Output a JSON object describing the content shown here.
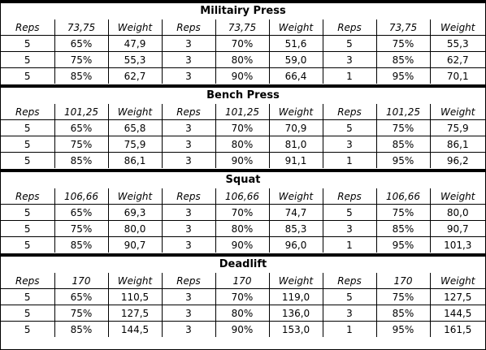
{
  "header_labels": [
    "Reps",
    "Weight"
  ],
  "sections": [
    {
      "title": "Militairy Press",
      "max": "73,75",
      "rows": [
        [
          "5",
          "65%",
          "47,9",
          "3",
          "70%",
          "51,6",
          "5",
          "75%",
          "55,3"
        ],
        [
          "5",
          "75%",
          "55,3",
          "3",
          "80%",
          "59,0",
          "3",
          "85%",
          "62,7"
        ],
        [
          "5",
          "85%",
          "62,7",
          "3",
          "90%",
          "66,4",
          "1",
          "95%",
          "70,1"
        ]
      ]
    },
    {
      "title": "Bench Press",
      "max": "101,25",
      "rows": [
        [
          "5",
          "65%",
          "65,8",
          "3",
          "70%",
          "70,9",
          "5",
          "75%",
          "75,9"
        ],
        [
          "5",
          "75%",
          "75,9",
          "3",
          "80%",
          "81,0",
          "3",
          "85%",
          "86,1"
        ],
        [
          "5",
          "85%",
          "86,1",
          "3",
          "90%",
          "91,1",
          "1",
          "95%",
          "96,2"
        ]
      ]
    },
    {
      "title": "Squat",
      "max": "106,66",
      "rows": [
        [
          "5",
          "65%",
          "69,3",
          "3",
          "70%",
          "74,7",
          "5",
          "75%",
          "80,0"
        ],
        [
          "5",
          "75%",
          "80,0",
          "3",
          "80%",
          "85,3",
          "3",
          "85%",
          "90,7"
        ],
        [
          "5",
          "85%",
          "90,7",
          "3",
          "90%",
          "96,0",
          "1",
          "95%",
          "101,3"
        ]
      ]
    },
    {
      "title": "Deadlift",
      "max": "170",
      "rows": [
        [
          "5",
          "65%",
          "110,5",
          "3",
          "70%",
          "119,0",
          "5",
          "75%",
          "127,5"
        ],
        [
          "5",
          "75%",
          "127,5",
          "3",
          "80%",
          "136,0",
          "3",
          "85%",
          "144,5"
        ],
        [
          "5",
          "85%",
          "144,5",
          "3",
          "90%",
          "153,0",
          "1",
          "95%",
          "161,5"
        ]
      ]
    }
  ]
}
